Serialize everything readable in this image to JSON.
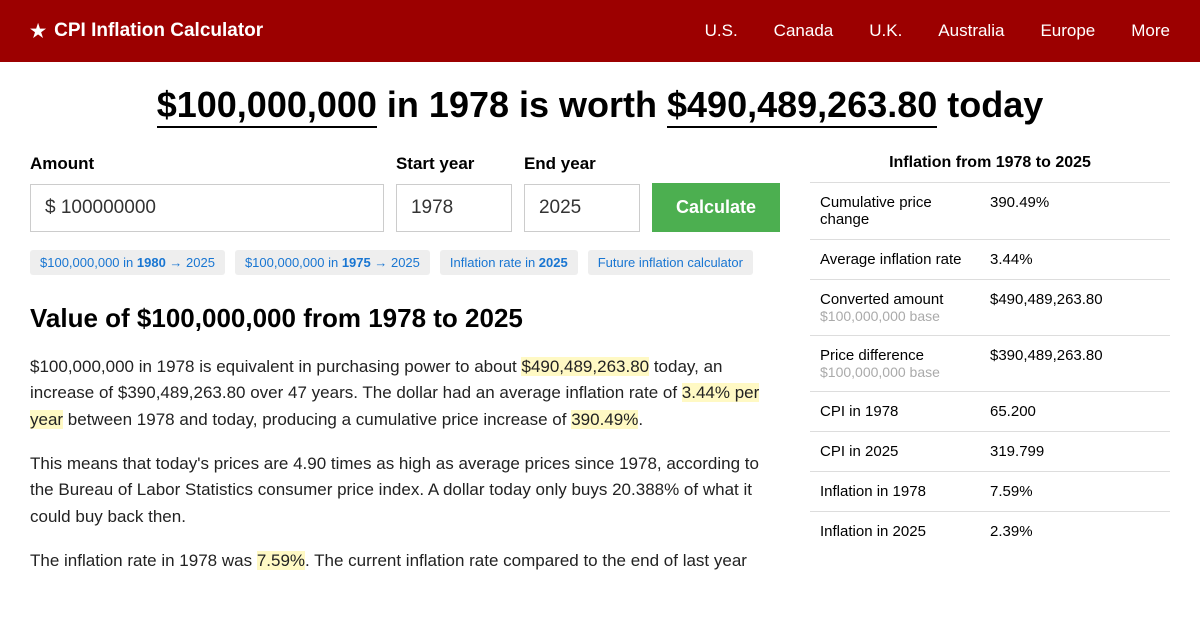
{
  "header": {
    "brand": "CPI Inflation Calculator",
    "nav": [
      "U.S.",
      "Canada",
      "U.K.",
      "Australia",
      "Europe",
      "More"
    ]
  },
  "headline": {
    "amount": "$100,000,000",
    "mid1": " in 1978 is worth ",
    "value": "$490,489,263.80",
    "mid2": " today"
  },
  "form": {
    "amount_label": "Amount",
    "amount_value": "$ 100000000",
    "start_label": "Start year",
    "start_value": "1978",
    "end_label": "End year",
    "end_value": "2025",
    "button": "Calculate"
  },
  "chips": [
    {
      "pre": "$100,000,000 in ",
      "bold": "1980",
      "post": " → 2025"
    },
    {
      "pre": "$100,000,000 in ",
      "bold": "1975",
      "post": " → 2025"
    },
    {
      "pre": "Inflation rate in ",
      "bold": "2025",
      "post": ""
    },
    {
      "pre": "Future inflation calculator",
      "bold": "",
      "post": ""
    }
  ],
  "section_title": "Value of $100,000,000 from 1978 to 2025",
  "para1": {
    "t1": "$100,000,000 in 1978 is equivalent in purchasing power to about ",
    "h1": "$490,489,263.80",
    "t2": " today, an increase of $390,489,263.80 over 47 years. The dollar had an average inflation rate of ",
    "h2": "3.44% per year",
    "t3": " between 1978 and today, producing a cumulative price increase of ",
    "h3": "390.49%",
    "t4": "."
  },
  "para2": "This means that today's prices are 4.90 times as high as average prices since 1978, according to the Bureau of Labor Statistics consumer price index. A dollar today only buys 20.388% of what it could buy back then.",
  "para3": {
    "t1": "The inflation rate in 1978 was ",
    "h1": "7.59%",
    "t2": ". The current inflation rate compared to the end of last year"
  },
  "stats": {
    "title": "Inflation from 1978 to 2025",
    "rows": [
      {
        "label": "Cumulative price change",
        "sub": "",
        "value": "390.49%"
      },
      {
        "label": "Average inflation rate",
        "sub": "",
        "value": "3.44%"
      },
      {
        "label": "Converted amount",
        "sub": "$100,000,000 base",
        "value": "$490,489,263.80"
      },
      {
        "label": "Price difference",
        "sub": "$100,000,000 base",
        "value": "$390,489,263.80"
      },
      {
        "label": "CPI in 1978",
        "sub": "",
        "value": "65.200"
      },
      {
        "label": "CPI in 2025",
        "sub": "",
        "value": "319.799"
      },
      {
        "label": "Inflation in 1978",
        "sub": "",
        "value": "7.59%"
      },
      {
        "label": "Inflation in 2025",
        "sub": "",
        "value": "2.39%"
      }
    ]
  },
  "colors": {
    "header_bg": "#9c0000",
    "button_bg": "#4caf50",
    "chip_bg": "#eeeeee",
    "chip_text": "#1976d2",
    "highlight_bg": "#fff9c4",
    "border": "#dddddd"
  }
}
